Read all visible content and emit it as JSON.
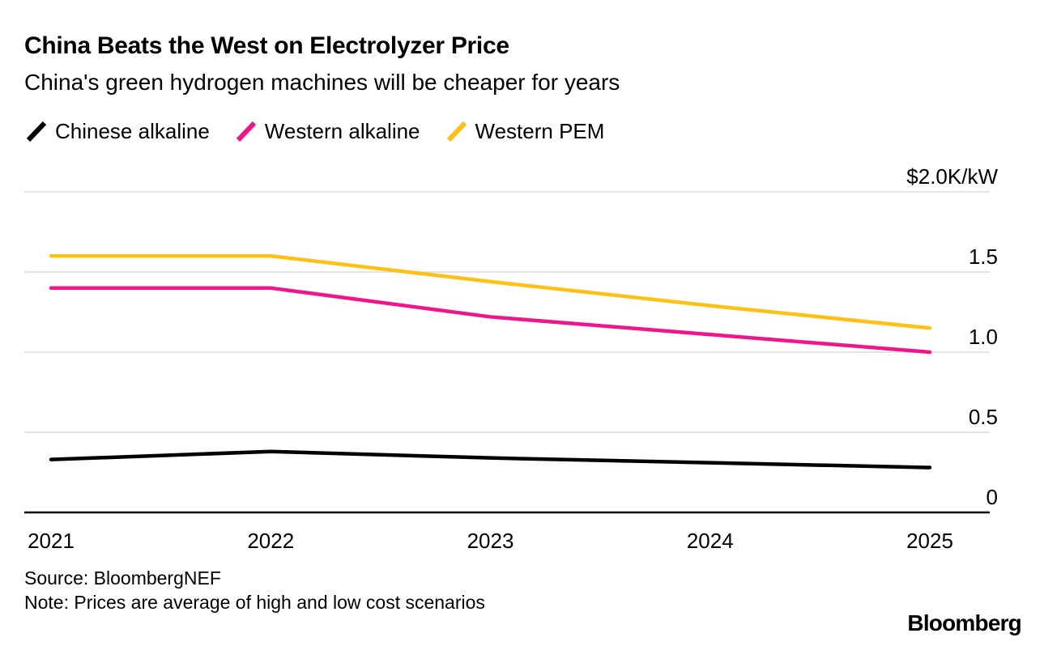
{
  "header": {
    "title": "China Beats the West on Electrolyzer Price",
    "subtitle": "China's green hydrogen machines will be cheaper for years"
  },
  "legend": [
    {
      "label": "Chinese alkaline",
      "color": "#000000"
    },
    {
      "label": "Western alkaline",
      "color": "#ef158c"
    },
    {
      "label": "Western PEM",
      "color": "#fdc013"
    }
  ],
  "chart_data": {
    "type": "line",
    "x": [
      "2021",
      "2022",
      "2023",
      "2024",
      "2025"
    ],
    "series": [
      {
        "name": "Chinese alkaline",
        "color": "#000000",
        "values": [
          0.33,
          0.38,
          0.34,
          0.31,
          0.28
        ]
      },
      {
        "name": "Western alkaline",
        "color": "#ef158c",
        "values": [
          1.4,
          1.4,
          1.22,
          1.11,
          1.0
        ]
      },
      {
        "name": "Western PEM",
        "color": "#fdc013",
        "values": [
          1.6,
          1.6,
          1.44,
          1.29,
          1.15
        ]
      }
    ],
    "title": "China Beats the West on Electrolyzer Price",
    "subtitle": "China's green hydrogen machines will be cheaper for years",
    "xlabel": "",
    "ylabel": "$2.0K/kW",
    "y_axis": {
      "range": [
        0,
        2.0
      ],
      "ticks": [
        0,
        0.5,
        1.0,
        1.5,
        2.0
      ],
      "tick_labels": [
        "0",
        "0.5",
        "1.0",
        "1.5",
        "$2.0K/kW"
      ]
    },
    "grid": true,
    "legend_position": "top",
    "grid_color": "#dcdcdc",
    "axis_color": "#000000"
  },
  "footer": {
    "source": "Source: BloombergNEF",
    "note": "Note: Prices are average of high and low cost scenarios",
    "brand": "Bloomberg"
  }
}
